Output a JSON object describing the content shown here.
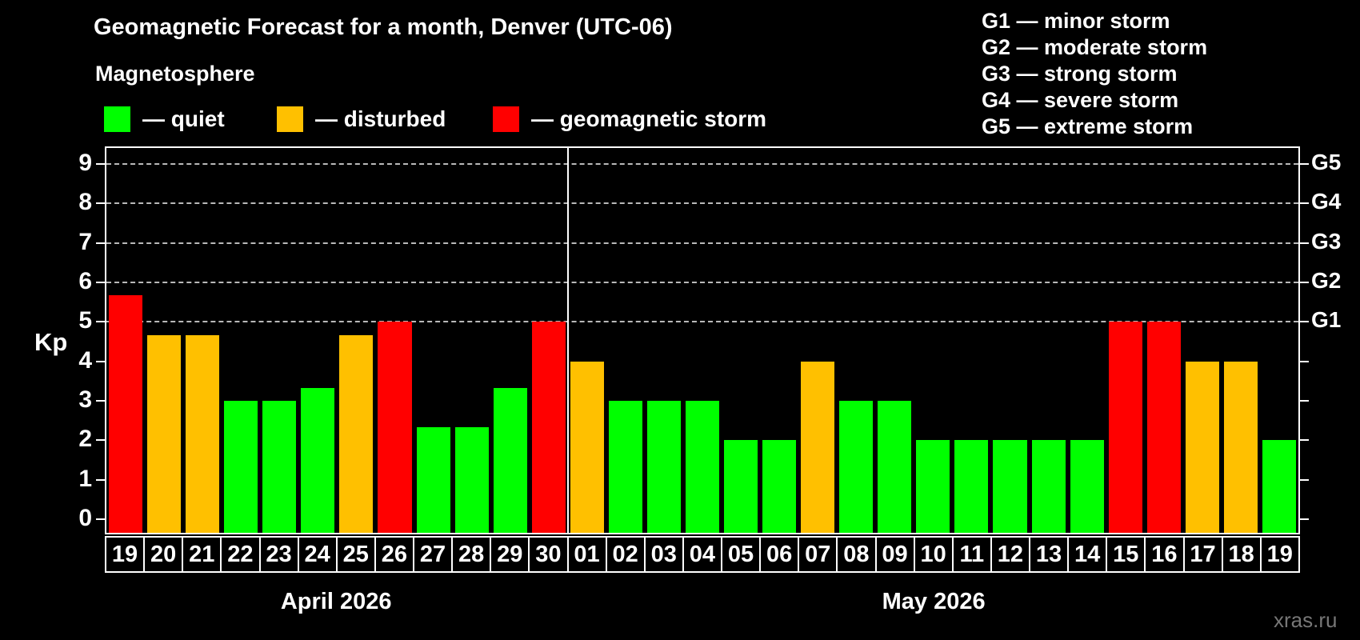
{
  "title": "Geomagnetic Forecast for a month, Denver (UTC-06)",
  "subtitle": "Magnetosphere",
  "legend": [
    {
      "id": "quiet",
      "label": "— quiet",
      "color": "#00ff00"
    },
    {
      "id": "disturbed",
      "label": "— disturbed",
      "color": "#ffc000"
    },
    {
      "id": "storm",
      "label": "— geomagnetic storm",
      "color": "#ff0000"
    }
  ],
  "storm_scale_legend": [
    "G1 — minor storm",
    "G2 — moderate storm",
    "G3 — strong storm",
    "G4 — severe storm",
    "G5 — extreme storm"
  ],
  "watermark": "xras.ru",
  "chart_data": {
    "type": "bar",
    "ylabel": "Kp",
    "ylim": [
      0,
      9
    ],
    "yticks": [
      0,
      1,
      2,
      3,
      4,
      5,
      6,
      7,
      8,
      9
    ],
    "gridline_levels": [
      5,
      6,
      7,
      8,
      9
    ],
    "right_axis_labels": [
      {
        "label": "G1",
        "kp": 5
      },
      {
        "label": "G2",
        "kp": 6
      },
      {
        "label": "G3",
        "kp": 7
      },
      {
        "label": "G4",
        "kp": 8
      },
      {
        "label": "G5",
        "kp": 9
      }
    ],
    "status_colors": {
      "quiet": "#00ff00",
      "disturbed": "#ffc000",
      "storm": "#ff0000"
    },
    "grid": true,
    "legend_position": "top",
    "months": [
      {
        "label": "April 2026",
        "days": [
          {
            "day": "19",
            "kp": 5.67,
            "status": "storm"
          },
          {
            "day": "20",
            "kp": 4.67,
            "status": "disturbed"
          },
          {
            "day": "21",
            "kp": 4.67,
            "status": "disturbed"
          },
          {
            "day": "22",
            "kp": 3.0,
            "status": "quiet"
          },
          {
            "day": "23",
            "kp": 3.0,
            "status": "quiet"
          },
          {
            "day": "24",
            "kp": 3.33,
            "status": "quiet"
          },
          {
            "day": "25",
            "kp": 4.67,
            "status": "disturbed"
          },
          {
            "day": "26",
            "kp": 5.0,
            "status": "storm"
          },
          {
            "day": "27",
            "kp": 2.33,
            "status": "quiet"
          },
          {
            "day": "28",
            "kp": 2.33,
            "status": "quiet"
          },
          {
            "day": "29",
            "kp": 3.33,
            "status": "quiet"
          },
          {
            "day": "30",
            "kp": 5.0,
            "status": "storm"
          }
        ]
      },
      {
        "label": "May 2026",
        "days": [
          {
            "day": "01",
            "kp": 4.0,
            "status": "disturbed"
          },
          {
            "day": "02",
            "kp": 3.0,
            "status": "quiet"
          },
          {
            "day": "03",
            "kp": 3.0,
            "status": "quiet"
          },
          {
            "day": "04",
            "kp": 3.0,
            "status": "quiet"
          },
          {
            "day": "05",
            "kp": 2.0,
            "status": "quiet"
          },
          {
            "day": "06",
            "kp": 2.0,
            "status": "quiet"
          },
          {
            "day": "07",
            "kp": 4.0,
            "status": "disturbed"
          },
          {
            "day": "08",
            "kp": 3.0,
            "status": "quiet"
          },
          {
            "day": "09",
            "kp": 3.0,
            "status": "quiet"
          },
          {
            "day": "10",
            "kp": 2.0,
            "status": "quiet"
          },
          {
            "day": "11",
            "kp": 2.0,
            "status": "quiet"
          },
          {
            "day": "12",
            "kp": 2.0,
            "status": "quiet"
          },
          {
            "day": "13",
            "kp": 2.0,
            "status": "quiet"
          },
          {
            "day": "14",
            "kp": 2.0,
            "status": "quiet"
          },
          {
            "day": "15",
            "kp": 5.0,
            "status": "storm"
          },
          {
            "day": "16",
            "kp": 5.0,
            "status": "storm"
          },
          {
            "day": "17",
            "kp": 4.0,
            "status": "disturbed"
          },
          {
            "day": "18",
            "kp": 4.0,
            "status": "disturbed"
          },
          {
            "day": "19",
            "kp": 2.0,
            "status": "quiet"
          }
        ]
      }
    ]
  }
}
